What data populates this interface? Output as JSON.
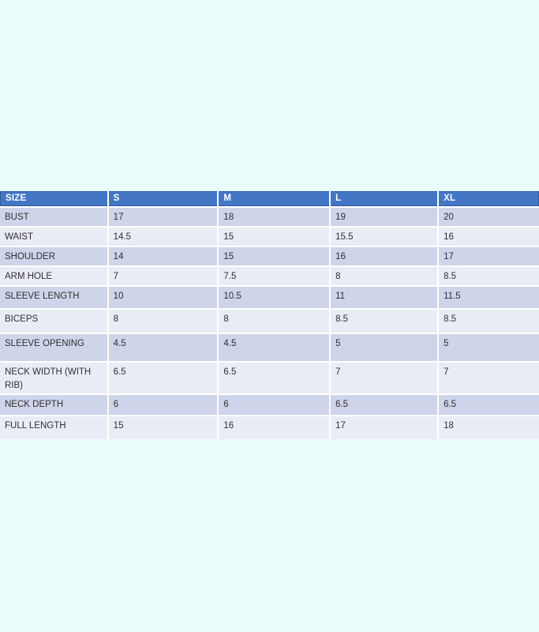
{
  "page": {
    "background_color": "#e9fdfc"
  },
  "chart_data": {
    "type": "table",
    "columns": [
      "SIZE",
      "S",
      "M",
      "L",
      "XL"
    ],
    "rows": [
      [
        "BUST",
        "17",
        "18",
        "19",
        "20"
      ],
      [
        "WAIST",
        "14.5",
        "15",
        "15.5",
        "16"
      ],
      [
        "SHOULDER",
        "14",
        "15",
        "16",
        "17"
      ],
      [
        "ARM HOLE",
        "7",
        "7.5",
        "8",
        "8.5"
      ],
      [
        "SLEEVE LENGTH",
        "10",
        "10.5",
        "11",
        "11.5"
      ],
      [
        "BICEPS",
        "8",
        "8",
        "8.5",
        "8.5"
      ],
      [
        "SLEEVE OPENING",
        "4.5",
        "4.5",
        "5",
        "5"
      ],
      [
        "NECK WIDTH (WITH RIB)",
        "6.5",
        "6.5",
        "7",
        "7"
      ],
      [
        "NECK DEPTH",
        "6",
        "6",
        "6.5",
        "6.5"
      ],
      [
        "FULL LENGTH",
        "15",
        "16",
        "17",
        "18"
      ]
    ],
    "layout": {
      "grid": "white 2px separators, banded rows",
      "header_fill": "#4377c6",
      "header_border": "#2d5b9e",
      "header_text_color": "#ffffff",
      "band_dark": "#ced4e9",
      "band_light": "#eaecf5",
      "first_data_row_band": "dark"
    }
  }
}
